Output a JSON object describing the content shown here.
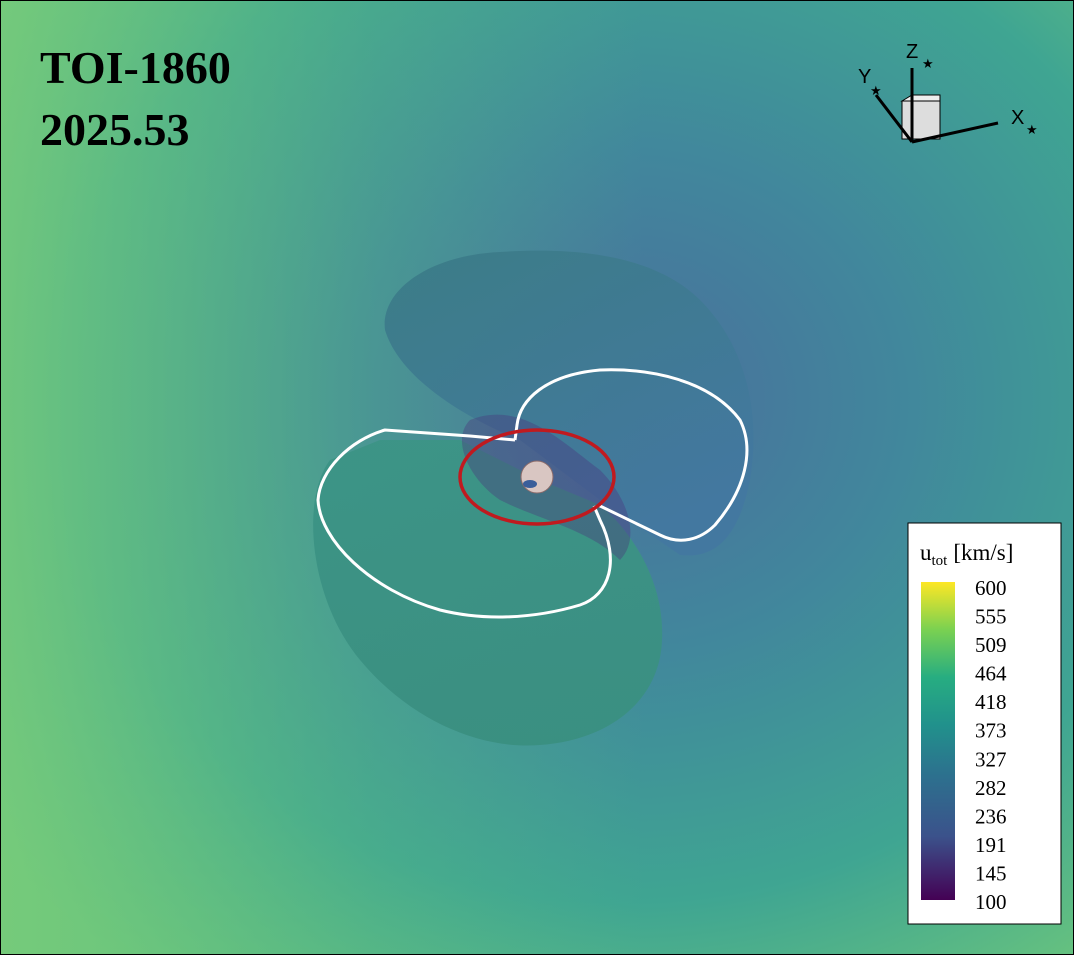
{
  "title": "TOI-1860",
  "time": "2025.53",
  "axes": {
    "x": "X",
    "y": "Y",
    "z": "Z"
  },
  "colorbar": {
    "symbol": "u",
    "subscript": "tot",
    "unit": "[km/s]",
    "ticks": [
      600,
      555,
      509,
      464,
      418,
      373,
      327,
      282,
      236,
      191,
      145,
      100
    ]
  }
}
